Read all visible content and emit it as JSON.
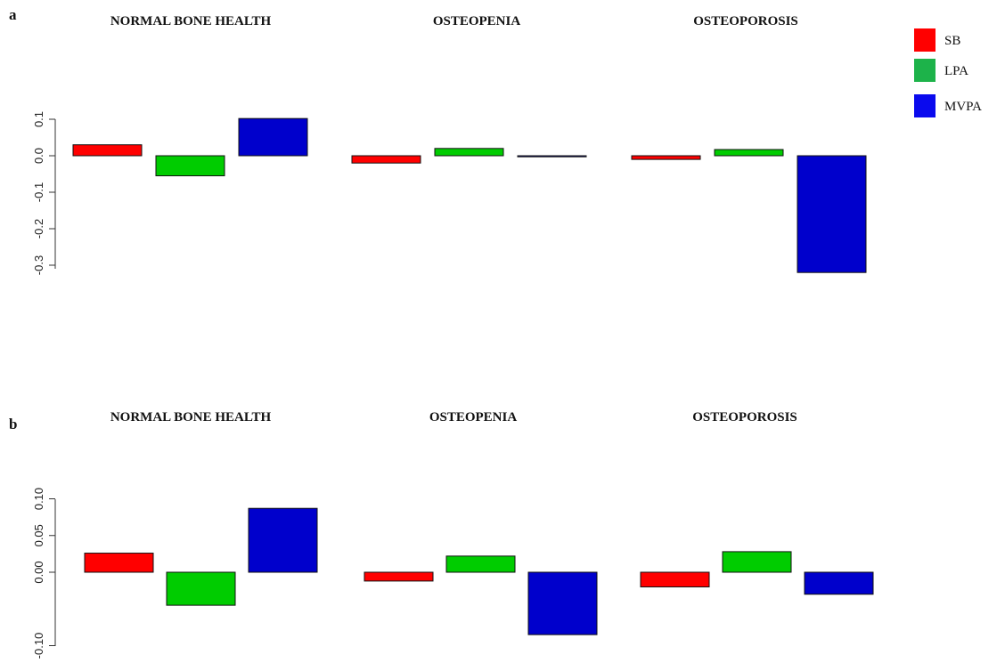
{
  "chart_data": [
    {
      "type": "bar",
      "panel": "a",
      "categories": [
        "NORMAL BONE HEALTH",
        "OSTEOPENIA",
        "OSTEOPOROSIS"
      ],
      "series": [
        {
          "name": "SB",
          "color": "#ff0000",
          "values": [
            0.03,
            -0.02,
            -0.01
          ]
        },
        {
          "name": "LPA",
          "color": "#00cc00",
          "values": [
            -0.055,
            0.02,
            0.017
          ]
        },
        {
          "name": "MVPA",
          "color": "#0000cc",
          "values": [
            0.102,
            0.0,
            -0.32
          ]
        }
      ],
      "yticks": [
        0.1,
        0.0,
        -0.1,
        -0.2,
        -0.3
      ],
      "ytick_labels": [
        "0.1",
        "0.0",
        "-0.1",
        "-0.2",
        "-0.3"
      ],
      "ylim": [
        -0.32,
        0.105
      ]
    },
    {
      "type": "bar",
      "panel": "b",
      "categories": [
        "NORMAL BONE HEALTH",
        "OSTEOPENIA",
        "OSTEOPOROSIS"
      ],
      "series": [
        {
          "name": "SB",
          "color": "#ff0000",
          "values": [
            0.026,
            -0.012,
            -0.02
          ]
        },
        {
          "name": "LPA",
          "color": "#00cc00",
          "values": [
            -0.045,
            0.022,
            0.028
          ]
        },
        {
          "name": "MVPA",
          "color": "#0000cc",
          "values": [
            0.087,
            -0.085,
            -0.03
          ]
        }
      ],
      "yticks": [
        0.1,
        0.05,
        0.0,
        -0.1
      ],
      "ytick_labels": [
        "0.10",
        "0.05",
        "0.00",
        "-0.10"
      ],
      "ylim": [
        -0.1,
        0.1
      ]
    }
  ],
  "legend": [
    {
      "label": "SB",
      "color": "#ff0000"
    },
    {
      "label": "LPA",
      "color": "#1db34a"
    },
    {
      "label": "MVPA",
      "color": "#0a0aee"
    }
  ]
}
